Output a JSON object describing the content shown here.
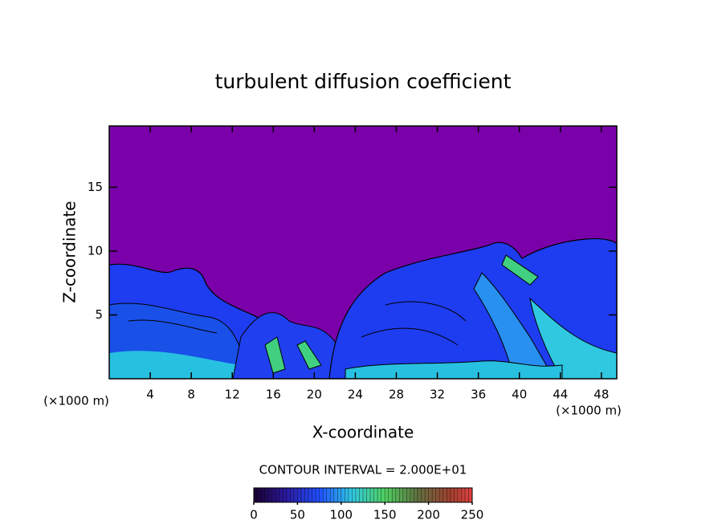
{
  "chart_data": {
    "type": "contour",
    "title": "turbulent diffusion coefficient",
    "x_label": "X-coordinate",
    "y_label": "Z-coordinate",
    "y_unit": "(×1000 m)",
    "x_unit": "(×1000 m)",
    "xlim": [
      0,
      49.5
    ],
    "ylim": [
      0,
      19.8
    ],
    "xticks": [
      4,
      8,
      12,
      16,
      20,
      24,
      28,
      32,
      36,
      40,
      44,
      48
    ],
    "yticks": [
      5,
      10,
      15
    ],
    "contour_interval_label": "CONTOUR INTERVAL = 2.000E+01",
    "colorbar": {
      "lim": [
        0,
        250
      ],
      "ticks": [
        0,
        50,
        100,
        150,
        200,
        250
      ]
    }
  }
}
